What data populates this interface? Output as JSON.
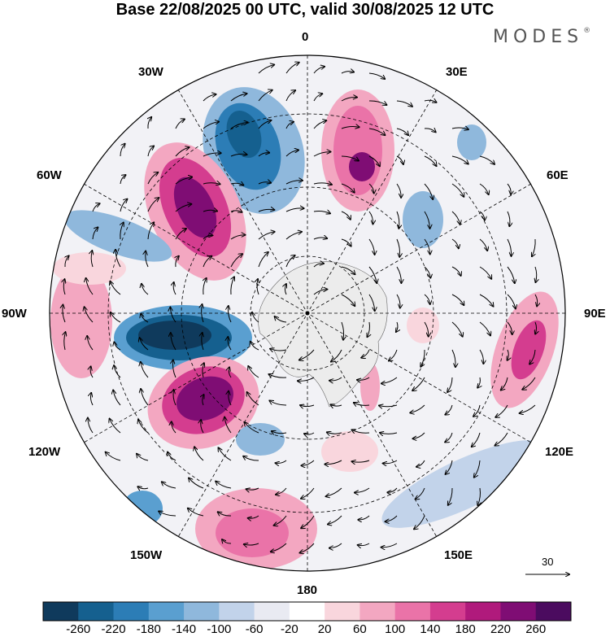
{
  "header": {
    "title": "Base 22/08/2025 00 UTC, valid 30/08/2025 12 UTC",
    "brand": "MODES",
    "brand_mark": "®"
  },
  "map": {
    "projection": "south polar stereographic",
    "longitude_labels": {
      "top": "0",
      "top_right": "30E",
      "upper_right": "60E",
      "right": "90E",
      "lower_right": "120E",
      "bottom_right": "150E",
      "bottom": "180",
      "bottom_left": "150W",
      "lower_left": "120W",
      "left": "90W",
      "upper_left": "60W",
      "top_left": "30W"
    },
    "reference_vector_label": "30"
  },
  "colorbar": {
    "labels": [
      "-260",
      "-220",
      "-180",
      "-140",
      "-100",
      "-60",
      "-20",
      "20",
      "60",
      "100",
      "140",
      "180",
      "220",
      "260"
    ],
    "colors": [
      "#0f3a5c",
      "#15608f",
      "#2c7db6",
      "#5a9fd0",
      "#8fb8dc",
      "#c2d3ea",
      "#e9eaf2",
      "#ffffff",
      "#f9d6dd",
      "#f3a7c1",
      "#ea73a8",
      "#d43d8f",
      "#b01a7c",
      "#7f0d74",
      "#4b0b5f"
    ]
  },
  "colors": {
    "land_gray": "#ececec",
    "grid": "#000000"
  }
}
